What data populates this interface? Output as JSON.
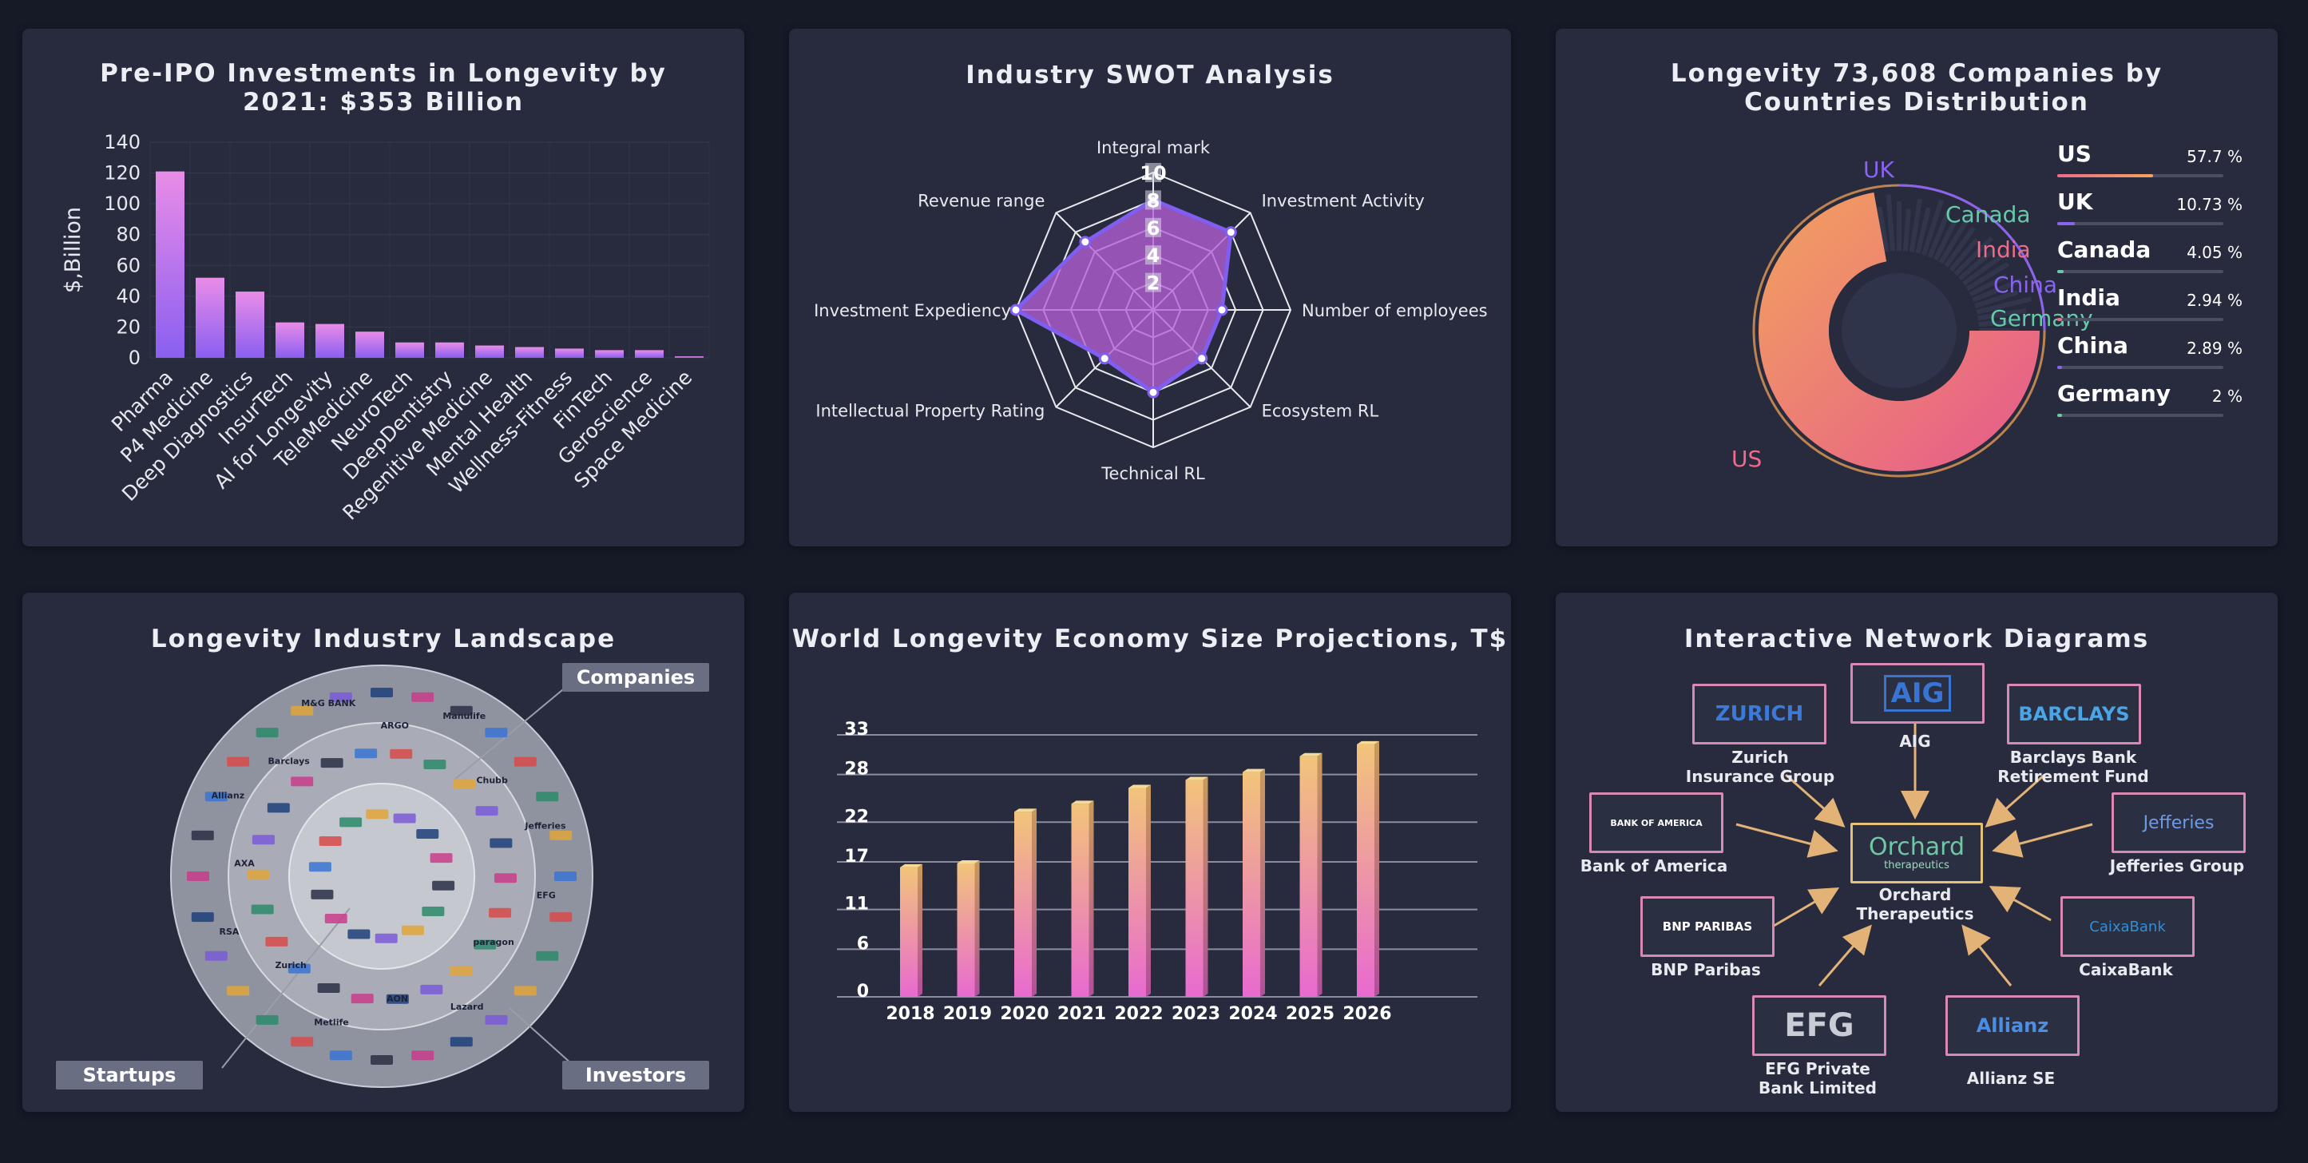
{
  "panels": {
    "bar": {
      "title": "Pre-IPO Investments in Longevity by 2021: $353 Billion",
      "chart_data": {
        "type": "bar",
        "title": "Pre-IPO Investments in Longevity by 2021: $353 Billion",
        "ylabel": "$,Billion",
        "xlabel": "",
        "ylim": [
          0,
          140
        ],
        "yticks": [
          0,
          20,
          40,
          60,
          80,
          100,
          120,
          140
        ],
        "categories": [
          "Pharma",
          "P4 Medicine",
          "Deep Diagnostics",
          "InsurTech",
          "AI for Longevity",
          "TeleMedicine",
          "NeuroTech",
          "DeepDentistry",
          "Regenitive Medicine",
          "Mental Health",
          "Wellness-Fitness",
          "FinTech",
          "Geroscience",
          "Space Medicine"
        ],
        "values": [
          121,
          52,
          43,
          23,
          22,
          17,
          10,
          10,
          8,
          7,
          6,
          5,
          5,
          1
        ],
        "colors": {
          "top": "#e98ce8",
          "bottom": "#8a5ff0"
        }
      }
    },
    "radar": {
      "title": "Industry SWOT Analysis",
      "chart_data": {
        "type": "radar",
        "axes": [
          "Integral mark",
          "Investment Activity",
          "Number of employees",
          "Ecosystem RL",
          "Technical RL",
          "Intellectual Property Rating",
          "Investment Expediency",
          "Revenue range"
        ],
        "values": [
          8,
          8,
          5,
          5,
          6,
          5,
          10,
          7
        ],
        "max": 10,
        "ticks": [
          2,
          4,
          6,
          8,
          10
        ],
        "tick_labels": [
          "2",
          "4",
          "6",
          "8",
          "10"
        ],
        "fill": "#b55fd6",
        "stroke": "#7f5ef0"
      }
    },
    "countries": {
      "title": "Longevity 73,608 Companies by Countries Distribution",
      "chart_data": {
        "type": "pie",
        "labels": [
          "US",
          "UK",
          "Canada",
          "India",
          "China",
          "Germany"
        ],
        "values": [
          57.7,
          10.73,
          4.05,
          2.94,
          2.89,
          2
        ],
        "pct_labels": [
          "57.7 %",
          "10.73 %",
          "4.05 %",
          "2.94 %",
          "2.89 %",
          "2 %"
        ],
        "colors": [
          "#f06b8a",
          "#8b63f0",
          "#66c9a8",
          "#f06b8a",
          "#8b63f0",
          "#66c9a8"
        ]
      }
    },
    "landscape": {
      "title": "Longevity Industry Landscape",
      "tags": {
        "companies": "Companies",
        "startups": "Startups",
        "investors": "Investors"
      },
      "logos": [
        "EFG",
        "paragon",
        "Lazard",
        "AON",
        "Metlife",
        "Zurich",
        "RSA",
        "AXA",
        "Allianz",
        "Barclays",
        "M&G BANK",
        "ARGO",
        "Manulife",
        "Chubb",
        "Jefferies"
      ]
    },
    "projections": {
      "title": "World Longevity Economy Size Projections, T$",
      "chart_data": {
        "type": "bar",
        "title": "World Longevity Economy Size Projections, T$",
        "categories": [
          "2018",
          "2019",
          "2020",
          "2021",
          "2022",
          "2023",
          "2024",
          "2025",
          "2026"
        ],
        "values": [
          15.5,
          16,
          22.5,
          23.5,
          25.5,
          26.5,
          27.5,
          29.5,
          31
        ],
        "yticks": [
          0,
          6,
          11,
          17,
          22,
          28,
          33
        ],
        "ylim": [
          0,
          34
        ],
        "colors": {
          "top": "#f2c47a",
          "bottom": "#e86ad0"
        }
      }
    },
    "network": {
      "title": "Interactive Network Diagrams",
      "center": {
        "logo": "Orchard",
        "logo_sub": "therapeutics",
        "label_line1": "Orchard",
        "label_line2": "Therapeutics"
      },
      "nodes": [
        {
          "logo": "ZURICH",
          "line1": "Zurich",
          "line2": "Insurance Group"
        },
        {
          "logo": "AIG",
          "line1": "AIG",
          "line2": ""
        },
        {
          "logo": "BARCLAYS",
          "line1": "Barclays Bank",
          "line2": "Retirement Fund"
        },
        {
          "logo": "BANK OF AMERICA",
          "line1": "Bank of America",
          "line2": ""
        },
        {
          "logo": "Jefferies",
          "line1": "Jefferies Group",
          "line2": ""
        },
        {
          "logo": "BNP PARIBAS",
          "line1": "BNP Paribas",
          "line2": ""
        },
        {
          "logo": "CaixaBank",
          "line1": "CaixaBank",
          "line2": ""
        },
        {
          "logo": "EFG",
          "line1": "EFG Private",
          "line2": "Bank Limited"
        },
        {
          "logo": "Allianz",
          "line1": "Allianz SE",
          "line2": ""
        }
      ]
    }
  }
}
